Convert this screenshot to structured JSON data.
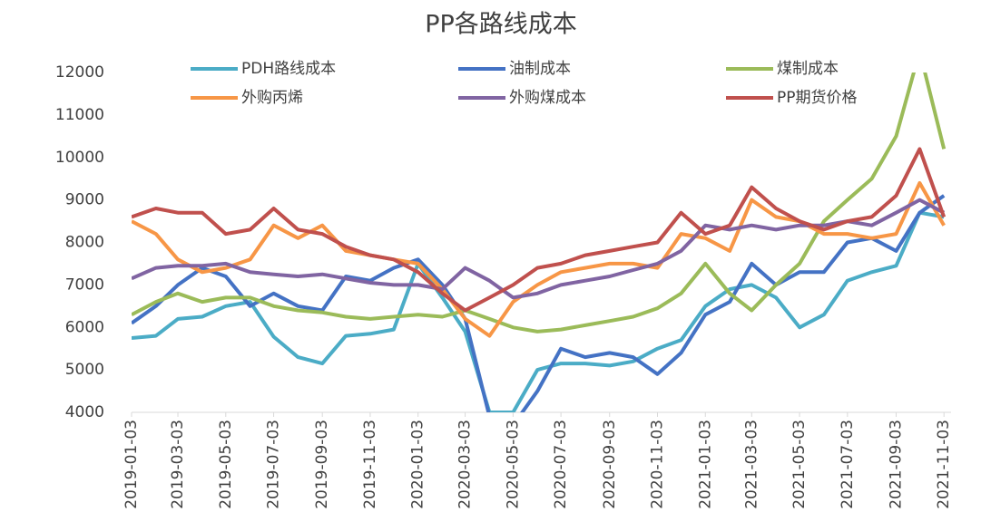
{
  "chart_data": {
    "type": "line",
    "title": "PP各路线成本",
    "x": [
      "2019-01-03",
      "2019-02-03",
      "2019-03-03",
      "2019-04-03",
      "2019-05-03",
      "2019-06-03",
      "2019-07-03",
      "2019-08-03",
      "2019-09-03",
      "2019-10-03",
      "2019-11-03",
      "2019-12-03",
      "2020-01-03",
      "2020-02-03",
      "2020-03-03",
      "2020-04-03",
      "2020-05-03",
      "2020-06-03",
      "2020-07-03",
      "2020-08-03",
      "2020-09-03",
      "2020-10-03",
      "2020-11-03",
      "2020-12-03",
      "2021-01-03",
      "2021-02-03",
      "2021-03-03",
      "2021-04-03",
      "2021-05-03",
      "2021-06-03",
      "2021-07-03",
      "2021-08-03",
      "2021-09-03",
      "2021-10-03",
      "2021-11-03"
    ],
    "series": [
      {
        "name": "PDH路线成本",
        "color": "#4bacc6",
        "values": [
          5750,
          5800,
          6200,
          6250,
          6500,
          6600,
          5780,
          5300,
          5150,
          5800,
          5850,
          5950,
          7500,
          6700,
          5900,
          4000,
          4000,
          5000,
          5150,
          5150,
          5100,
          5200,
          5500,
          5700,
          6500,
          6900,
          7000,
          6700,
          6000,
          6300,
          7100,
          7300,
          7450,
          8700,
          8600
        ]
      },
      {
        "name": "油制成本",
        "color": "#4472c4",
        "values": [
          6100,
          6500,
          7000,
          7400,
          7200,
          6500,
          6800,
          6500,
          6400,
          7200,
          7100,
          7400,
          7600,
          7000,
          6200,
          3900,
          3700,
          4500,
          5500,
          5300,
          5400,
          5300,
          4900,
          5400,
          6300,
          6600,
          7500,
          7000,
          7300,
          7300,
          8000,
          8100,
          7800,
          8700,
          9100
        ]
      },
      {
        "name": "煤制成本",
        "color": "#9bbb59",
        "values": [
          6300,
          6600,
          6800,
          6600,
          6700,
          6700,
          6500,
          6400,
          6350,
          6250,
          6200,
          6250,
          6300,
          6250,
          6400,
          6200,
          6000,
          5900,
          5950,
          6050,
          6150,
          6250,
          6450,
          6800,
          7500,
          6800,
          6400,
          7000,
          7500,
          8500,
          9000,
          9500,
          10500,
          12500,
          10200
        ]
      },
      {
        "name": "外购丙烯",
        "color": "#f79646",
        "values": [
          8500,
          8200,
          7600,
          7300,
          7400,
          7600,
          8400,
          8100,
          8400,
          7800,
          7700,
          7600,
          7500,
          6900,
          6200,
          5800,
          6600,
          7000,
          7300,
          7400,
          7500,
          7500,
          7400,
          8200,
          8100,
          7800,
          9000,
          8600,
          8500,
          8200,
          8200,
          8100,
          8200,
          9400,
          8400
        ]
      },
      {
        "name": "外购煤成本",
        "color": "#8064a2",
        "values": [
          7150,
          7400,
          7450,
          7450,
          7500,
          7300,
          7250,
          7200,
          7250,
          7150,
          7050,
          7000,
          7000,
          6900,
          7400,
          7100,
          6700,
          6800,
          7000,
          7100,
          7200,
          7350,
          7500,
          7800,
          8400,
          8300,
          8400,
          8300,
          8400,
          8400,
          8500,
          8400,
          8700,
          9000,
          8700
        ]
      },
      {
        "name": "PP期货价格",
        "color": "#c0504d",
        "values": [
          8600,
          8800,
          8700,
          8700,
          8200,
          8300,
          8800,
          8300,
          8200,
          7900,
          7700,
          7600,
          7300,
          6800,
          6400,
          6700,
          7000,
          7400,
          7500,
          7700,
          7800,
          7900,
          8000,
          8700,
          8200,
          8400,
          9300,
          8800,
          8500,
          8300,
          8500,
          8600,
          9100,
          10200,
          8600
        ]
      }
    ],
    "xlim": [
      "2019-01-03",
      "2021-11-12"
    ],
    "xticks": [
      "2019-01-03",
      "2019-03-03",
      "2019-05-03",
      "2019-07-03",
      "2019-09-03",
      "2019-11-03",
      "2020-01-03",
      "2020-03-03",
      "2020-05-03",
      "2020-07-03",
      "2020-09-03",
      "2020-11-03",
      "2021-01-03",
      "2021-03-03",
      "2021-05-03",
      "2021-07-03",
      "2021-09-03",
      "2021-11-03"
    ],
    "ylim": [
      4000,
      12000
    ],
    "yticks": [
      4000,
      5000,
      6000,
      7000,
      8000,
      9000,
      10000,
      11000,
      12000
    ],
    "legend": "top"
  }
}
